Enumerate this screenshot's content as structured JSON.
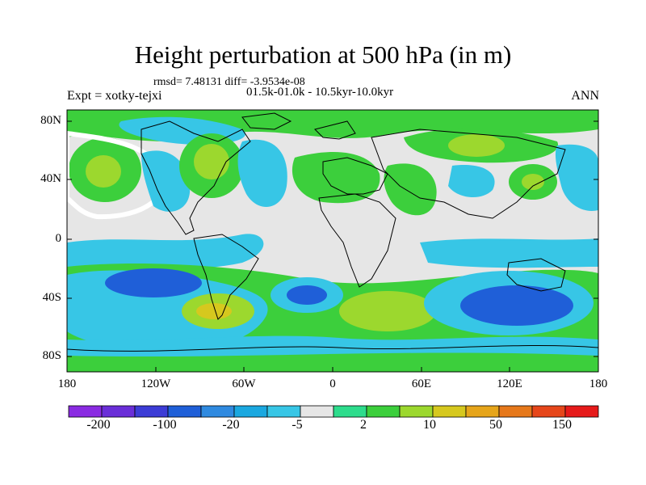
{
  "title": "Height perturbation at 500 hPa (in m)",
  "stats": "rmsd= 7.48131 diff= -3.9534e-08",
  "period": "01.5k-01.0k - 10.5kyr-10.0kyr",
  "experiment": "Expt = xotky-tejxi",
  "season": "ANN",
  "y_ticks": [
    "80N",
    "40N",
    "0",
    "40S",
    "80S"
  ],
  "x_ticks": [
    "180",
    "120W",
    "60W",
    "0",
    "60E",
    "120E",
    "180"
  ],
  "colorbar": {
    "colors": [
      "#8a2be2",
      "#6a2ed8",
      "#3c3cd6",
      "#1f5fd8",
      "#2f8ae0",
      "#1aa8e0",
      "#37c6e6",
      "#e6e6e6",
      "#2ddc8c",
      "#3ccf3c",
      "#9cd82e",
      "#d6c81e",
      "#e6a51a",
      "#e6781a",
      "#e6461a",
      "#e61a1a"
    ],
    "labels": [
      "-200",
      "-100",
      "-20",
      "-5",
      "2",
      "10",
      "50",
      "150"
    ]
  }
}
